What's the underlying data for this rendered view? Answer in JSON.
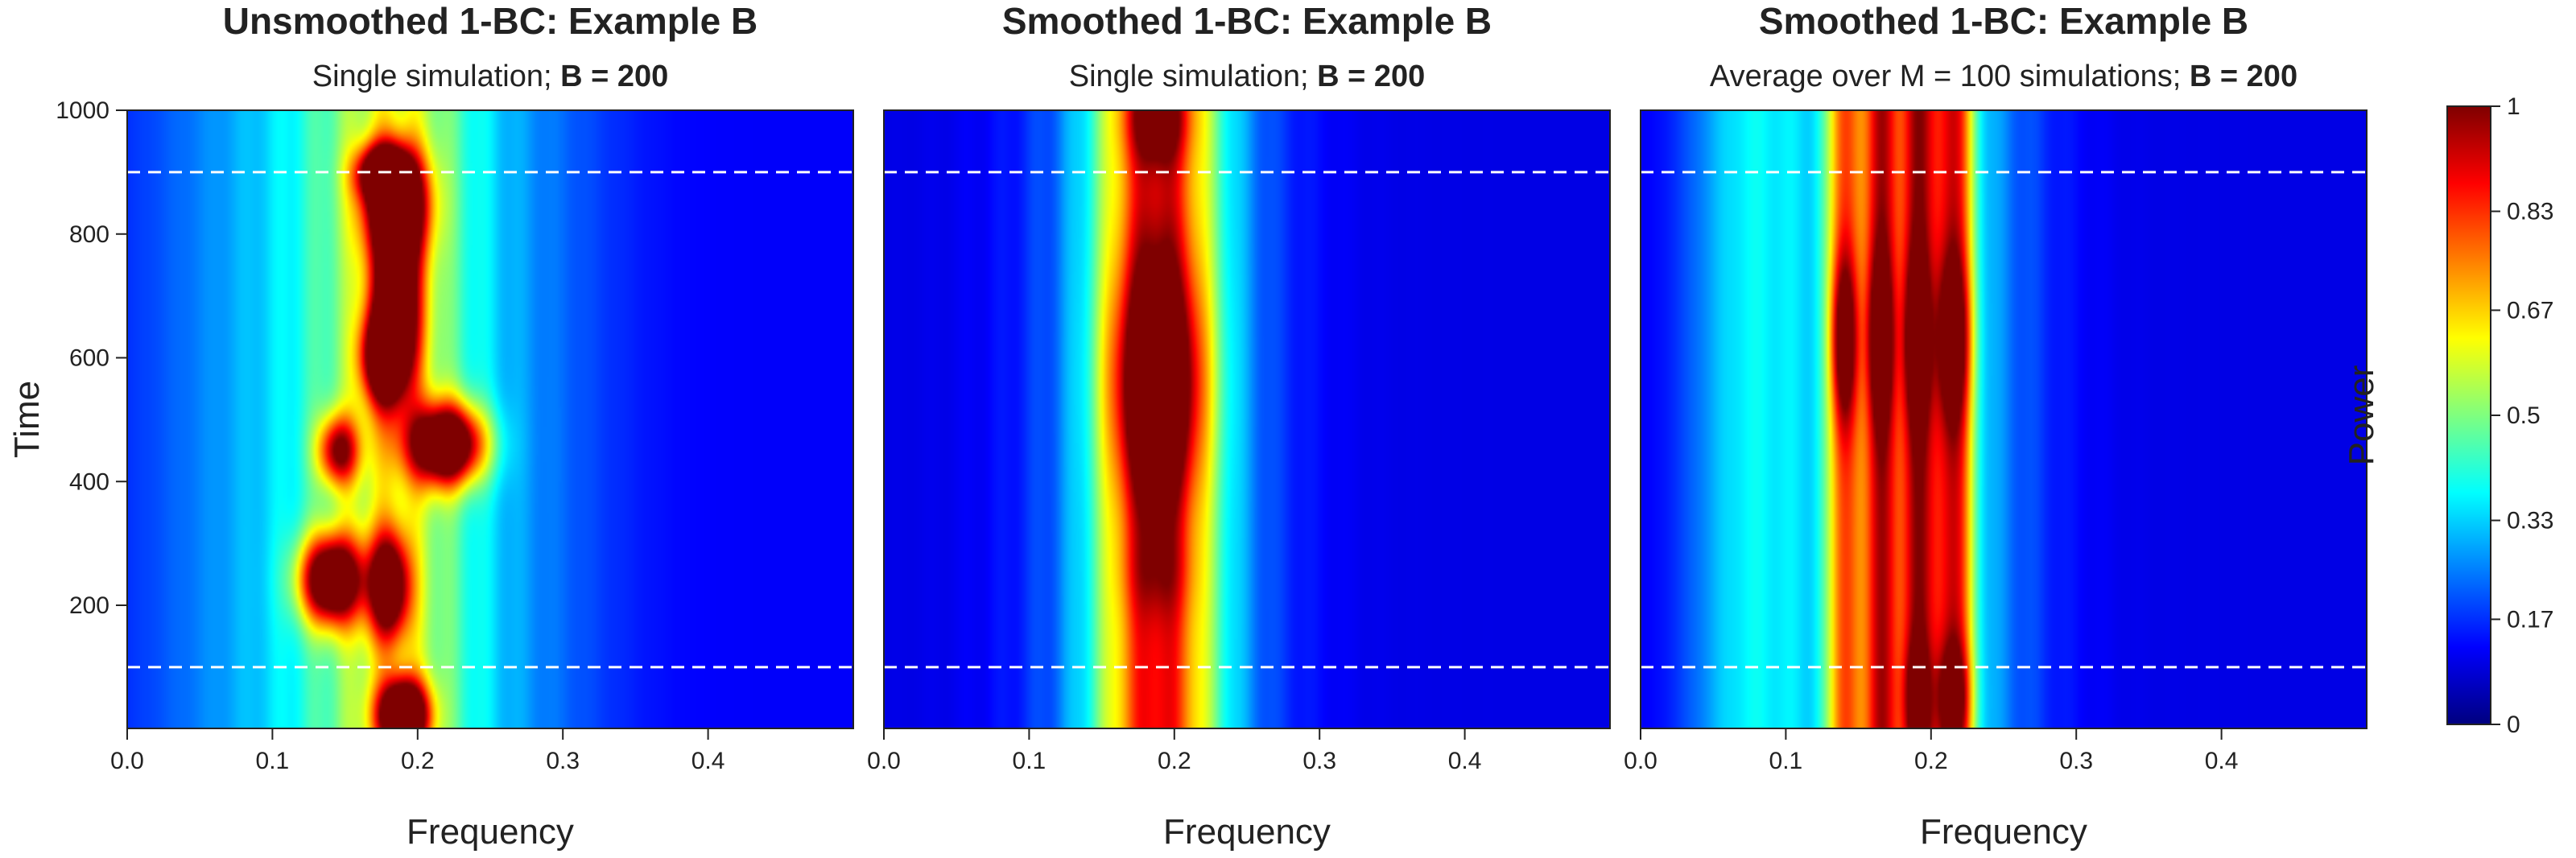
{
  "chart_data": [
    {
      "type": "heatmap",
      "title": "Unsmoothed 1-BC: Example B",
      "subtitle_plain": "Single simulation; ",
      "subtitle_bold": "B = 200",
      "xlabel": "Frequency",
      "ylabel": "Time",
      "xlim": [
        0,
        0.5
      ],
      "ylim": [
        1,
        1000
      ],
      "xticks": [
        "0.0",
        "0.1",
        "0.2",
        "0.3",
        "0.4"
      ],
      "yticks": [
        "200",
        "400",
        "600",
        "800",
        "1000"
      ],
      "reference_lines_time": [
        100,
        900
      ],
      "blobs": [
        {
          "f": 0.19,
          "t": 20,
          "sf": 0.012,
          "st": 40,
          "a": 0.95
        },
        {
          "f": 0.185,
          "t": 850,
          "sf": 0.015,
          "st": 60,
          "a": 0.8
        },
        {
          "f": 0.185,
          "t": 680,
          "sf": 0.012,
          "st": 100,
          "a": 0.75
        },
        {
          "f": 0.175,
          "t": 600,
          "sf": 0.01,
          "st": 50,
          "a": 0.6
        },
        {
          "f": 0.22,
          "t": 460,
          "sf": 0.018,
          "st": 45,
          "a": 0.9
        },
        {
          "f": 0.145,
          "t": 450,
          "sf": 0.01,
          "st": 40,
          "a": 0.55
        },
        {
          "f": 0.14,
          "t": 240,
          "sf": 0.015,
          "st": 50,
          "a": 0.85
        },
        {
          "f": 0.18,
          "t": 230,
          "sf": 0.01,
          "st": 60,
          "a": 0.7
        },
        {
          "f": 0.175,
          "t": 900,
          "sf": 0.012,
          "st": 30,
          "a": 0.6
        }
      ],
      "base_bands": [
        {
          "f": 0.19,
          "sf": 0.04,
          "a": 0.32
        },
        {
          "f": 0.14,
          "sf": 0.05,
          "a": 0.18
        },
        {
          "f": 0.06,
          "sf": 0.05,
          "a": 0.1
        },
        {
          "f": 0.27,
          "sf": 0.05,
          "a": 0.12
        }
      ],
      "background": 0.12
    },
    {
      "type": "heatmap",
      "title": "Smoothed 1-BC: Example B",
      "subtitle_plain": "Single simulation; ",
      "subtitle_bold": "B = 200",
      "xlabel": "Frequency",
      "xlim": [
        0,
        0.5
      ],
      "ylim": [
        1,
        1000
      ],
      "xticks": [
        "0.0",
        "0.1",
        "0.2",
        "0.3",
        "0.4"
      ],
      "reference_lines_time": [
        100,
        900
      ],
      "blobs": [
        {
          "f": 0.188,
          "t": 560,
          "sf": 0.02,
          "st": 130,
          "a": 0.55
        },
        {
          "f": 0.188,
          "t": 990,
          "sf": 0.014,
          "st": 50,
          "a": 0.3
        },
        {
          "f": 0.188,
          "t": 250,
          "sf": 0.016,
          "st": 50,
          "a": 0.1
        }
      ],
      "base_bands": [
        {
          "f": 0.188,
          "sf": 0.028,
          "a": 0.55
        },
        {
          "f": 0.188,
          "sf": 0.055,
          "a": 0.25
        }
      ],
      "background": 0.1
    },
    {
      "type": "heatmap",
      "title": "Smoothed 1-BC: Example B",
      "subtitle_plain": "Average over M = 100 simulations; ",
      "subtitle_bold": "B = 200",
      "xlabel": "Frequency",
      "xlim": [
        0,
        0.5
      ],
      "ylim": [
        1,
        1000
      ],
      "xticks": [
        "0.0",
        "0.1",
        "0.2",
        "0.3",
        "0.4"
      ],
      "reference_lines_time": [
        100,
        900
      ],
      "blobs": [
        {
          "f": 0.14,
          "t": 630,
          "sf": 0.006,
          "st": 90,
          "a": 0.4
        },
        {
          "f": 0.165,
          "t": 630,
          "sf": 0.006,
          "st": 90,
          "a": 0.35
        },
        {
          "f": 0.19,
          "t": 630,
          "sf": 0.006,
          "st": 90,
          "a": 0.35
        },
        {
          "f": 0.215,
          "t": 630,
          "sf": 0.008,
          "st": 90,
          "a": 0.35
        },
        {
          "f": 0.215,
          "t": 50,
          "sf": 0.008,
          "st": 60,
          "a": 0.3
        },
        {
          "f": 0.19,
          "t": 50,
          "sf": 0.006,
          "st": 60,
          "a": 0.25
        }
      ],
      "base_bands": [
        {
          "f": 0.14,
          "sf": 0.008,
          "a": 0.45
        },
        {
          "f": 0.165,
          "sf": 0.008,
          "a": 0.55
        },
        {
          "f": 0.19,
          "sf": 0.008,
          "a": 0.55
        },
        {
          "f": 0.215,
          "sf": 0.01,
          "a": 0.55
        },
        {
          "f": 0.18,
          "sf": 0.055,
          "a": 0.35
        },
        {
          "f": 0.07,
          "sf": 0.03,
          "a": 0.22
        }
      ],
      "background": 0.1
    }
  ],
  "colorbar": {
    "label": "Power",
    "range": [
      0,
      1
    ],
    "ticks": [
      "0",
      "0.17",
      "0.33",
      "0.5",
      "0.67",
      "0.83",
      "1"
    ],
    "tick_values": [
      0,
      0.17,
      0.33,
      0.5,
      0.67,
      0.83,
      1
    ],
    "colormap": [
      "#00007F",
      "#0000FF",
      "#007FFF",
      "#00FFFF",
      "#7FFF7F",
      "#FFFF00",
      "#FF7F00",
      "#FF0000",
      "#7F0000"
    ]
  },
  "reference_line_color": "#ffffff"
}
